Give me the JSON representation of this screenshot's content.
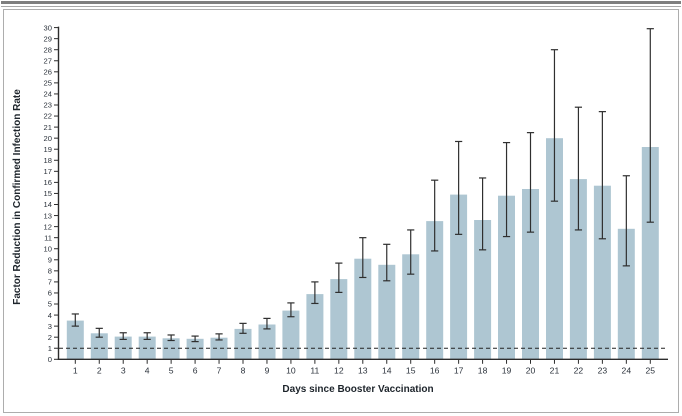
{
  "figure": {
    "ylabel": "Factor Reduction in Confirmed Infection Rate",
    "xlabel": "Days since Booster Vaccination"
  },
  "chart_data": {
    "type": "bar",
    "title": "",
    "xlabel": "Days since Booster Vaccination",
    "ylabel": "Factor Reduction in Confirmed Infection Rate",
    "ylim": [
      0,
      30
    ],
    "ytick_step": 1,
    "grid": false,
    "legend": "none",
    "reference_line_y": 1,
    "reference_line_style": "dashed",
    "categories": [
      1,
      2,
      3,
      4,
      5,
      6,
      7,
      8,
      9,
      10,
      11,
      12,
      13,
      14,
      15,
      16,
      17,
      18,
      19,
      20,
      21,
      22,
      23,
      24,
      25
    ],
    "values": [
      3.5,
      2.35,
      2.05,
      2.05,
      1.9,
      1.85,
      1.95,
      2.75,
      3.15,
      4.4,
      5.9,
      7.25,
      9.1,
      8.55,
      9.5,
      12.5,
      14.9,
      12.6,
      14.8,
      15.4,
      20.0,
      16.3,
      15.7,
      11.8,
      19.2
    ],
    "error_low": [
      3.0,
      2.0,
      1.8,
      1.8,
      1.7,
      1.6,
      1.75,
      2.35,
      2.75,
      3.85,
      5.05,
      6.05,
      7.4,
      7.1,
      7.7,
      9.8,
      11.3,
      9.9,
      11.1,
      11.5,
      14.3,
      11.7,
      10.9,
      8.45,
      12.4
    ],
    "error_high": [
      4.1,
      2.8,
      2.4,
      2.4,
      2.2,
      2.1,
      2.3,
      3.25,
      3.7,
      5.1,
      7.0,
      8.7,
      11.0,
      10.4,
      11.7,
      16.2,
      19.7,
      16.4,
      19.6,
      20.5,
      28.0,
      22.8,
      22.4,
      16.6,
      29.9
    ],
    "bar_color": "#aec6d2",
    "error_color": "#2f2f2f",
    "axis_color": "#2c2c2c",
    "reference_line_color": "#222222"
  }
}
